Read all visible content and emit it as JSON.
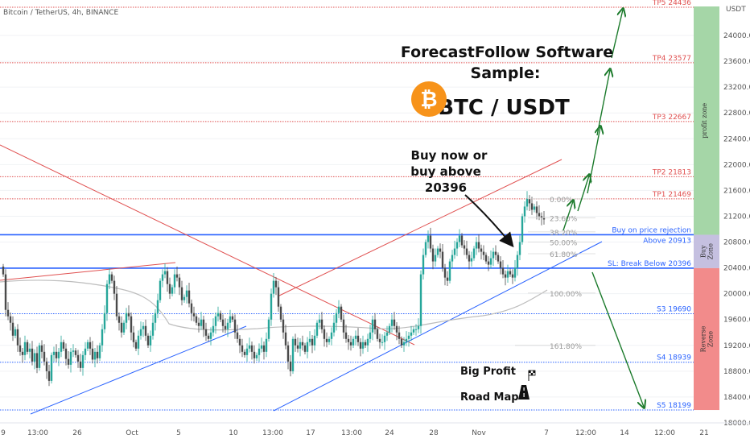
{
  "chart_data": {
    "type": "candlestick",
    "symbol_header": "Bitcoin / TetherUS, 4h, BINANCE",
    "title": "ForecastFollow Software",
    "subtitle": "Sample:",
    "pair": "BTC / USDT",
    "currency_label": "USDT",
    "ylim": [
      18000,
      24700
    ],
    "y_ticks": [
      "24000.00",
      "23600.00",
      "23200.00",
      "22800.00",
      "22400.00",
      "22000.00",
      "21600.00",
      "21200.00",
      "20800.00",
      "20400.00",
      "20000.00",
      "19600.00",
      "19200.00",
      "18800.00",
      "18400.00",
      "18000.00"
    ],
    "x_ticks": [
      "9",
      "13:00",
      "26",
      "Oct",
      "5",
      "10",
      "13:00",
      "17",
      "13:00",
      "24",
      "28",
      "Nov",
      "7",
      "12:00",
      "14",
      "12:00",
      "21"
    ],
    "levels": [
      {
        "label": "TP5 24436",
        "value": 24436,
        "color": "#e05050"
      },
      {
        "label": "TP4 23577",
        "value": 23577,
        "color": "#e05050"
      },
      {
        "label": "TP3 22667",
        "value": 22667,
        "color": "#e05050"
      },
      {
        "label": "TP2 21813",
        "value": 21813,
        "color": "#e05050"
      },
      {
        "label": "TP1 21469",
        "value": 21469,
        "color": "#e05050"
      },
      {
        "label": "Buy on price rejection",
        "value": 20913,
        "color": "#2962ff"
      },
      {
        "label": "Above 20913",
        "value": 20913,
        "color": "#2962ff"
      },
      {
        "label": "SL: Break Below 20396",
        "value": 20396,
        "color": "#2962ff"
      },
      {
        "label": "S3 19690",
        "value": 19690,
        "color": "#2962ff"
      },
      {
        "label": "S4 18939",
        "value": 18939,
        "color": "#2962ff"
      },
      {
        "label": "S5 18199",
        "value": 18199,
        "color": "#2962ff"
      }
    ],
    "fib_levels": [
      {
        "label": "0.00%",
        "value": 21469
      },
      {
        "label": "23.60%",
        "value": 21175
      },
      {
        "label": "38.20%",
        "value": 20958
      },
      {
        "label": "50.00%",
        "value": 20800
      },
      {
        "label": "61.80%",
        "value": 20620
      },
      {
        "label": "100.00%",
        "value": 20010
      },
      {
        "label": "161.80%",
        "value": 19200
      }
    ],
    "zones": [
      {
        "label": "profit zone",
        "from": 20913,
        "to": 24700,
        "color": "#a5d6a7"
      },
      {
        "label": "Buy Zone",
        "from": 20396,
        "to": 20913,
        "color": "#c5c0e0"
      },
      {
        "label": "Reverse Zone",
        "from": 18199,
        "to": 20396,
        "color": "#f28b8b"
      }
    ],
    "annotations": {
      "buy_line1": "Buy now or",
      "buy_line2": "buy above",
      "buy_line3": "20396",
      "road1": "Big Profit",
      "road2": "Road Map"
    },
    "close": [
      20300,
      19750,
      19650,
      19550,
      19350,
      19450,
      19200,
      19100,
      19050,
      19250,
      19100,
      19150,
      18950,
      19080,
      18850,
      19200,
      19100,
      18950,
      18800,
      18650,
      19050,
      19100,
      19000,
      19100,
      19250,
      19150,
      18990,
      18900,
      19100,
      19120,
      19050,
      18950,
      18850,
      19050,
      19150,
      19250,
      19150,
      18980,
      19100,
      19000,
      19200,
      19450,
      19700,
      20150,
      20300,
      20200,
      20000,
      19650,
      19550,
      19400,
      19550,
      19700,
      19650,
      19400,
      19250,
      19150,
      19350,
      19450,
      19500,
      19350,
      19200,
      19350,
      19550,
      19700,
      19900,
      20200,
      20300,
      20350,
      20150,
      20000,
      20100,
      20300,
      20250,
      20100,
      19900,
      19950,
      20050,
      19850,
      19700,
      19650,
      19550,
      19500,
      19600,
      19450,
      19350,
      19300,
      19400,
      19500,
      19650,
      19700,
      19600,
      19500,
      19450,
      19550,
      19650,
      19600,
      19400,
      19300,
      19200,
      19100,
      19050,
      19150,
      19200,
      19100,
      19000,
      19050,
      19150,
      19200,
      19100,
      19300,
      19600,
      20000,
      20200,
      20100,
      19800,
      19600,
      19400,
      19200,
      18950,
      18800,
      19300,
      19200,
      19150,
      19250,
      19200,
      19100,
      19250,
      19300,
      19200,
      19350,
      19550,
      19600,
      19450,
      19300,
      19250,
      19300,
      19400,
      19550,
      19700,
      19800,
      19600,
      19400,
      19300,
      19250,
      19200,
      19300,
      19350,
      19250,
      19150,
      19250,
      19200,
      19300,
      19400,
      19600,
      19450,
      19300,
      19250,
      19250,
      19350,
      19400,
      19500,
      19600,
      19500,
      19400,
      19300,
      19200,
      19250,
      19300,
      19350,
      19400,
      19450,
      19450,
      19500,
      20300,
      20600,
      20800,
      20900,
      20700,
      20500,
      20600,
      20700,
      20650,
      20400,
      20250,
      20200,
      20500,
      20600,
      20700,
      20800,
      20900,
      20750,
      20700,
      20600,
      20500,
      20550,
      20700,
      20800,
      20700,
      20650,
      20600,
      20500,
      20450,
      20550,
      20650,
      20600,
      20500,
      20400,
      20300,
      20250,
      20350,
      20300,
      20250,
      20400,
      20600,
      20800,
      21200,
      21350,
      21469,
      21400,
      21300,
      21350,
      21250,
      21200,
      21180,
      21150
    ]
  }
}
